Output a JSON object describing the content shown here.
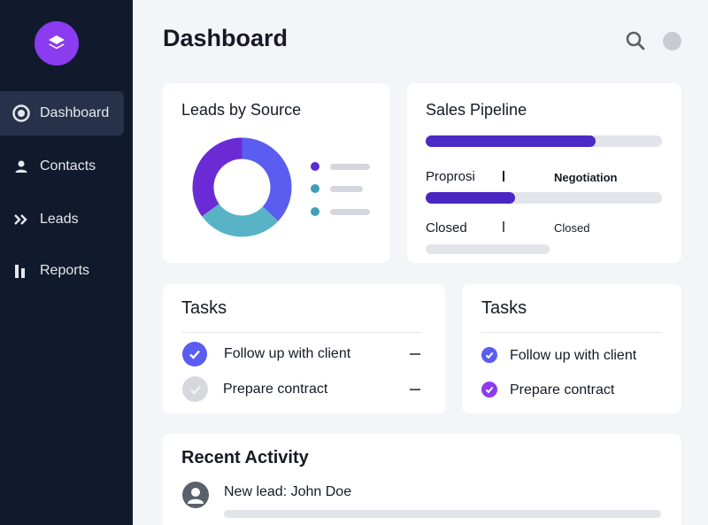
{
  "sidebar": {
    "items": [
      {
        "label": "Dashboard",
        "icon": "dashboard-icon",
        "active": true
      },
      {
        "label": "Contacts",
        "icon": "person-icon"
      },
      {
        "label": "Leads",
        "icon": "chevrons-right-icon"
      },
      {
        "label": "Reports",
        "icon": "bar-chart-icon"
      }
    ]
  },
  "header": {
    "title": "Dashboard"
  },
  "leads_card": {
    "title": "Leads by Source",
    "segments": [
      {
        "color": "#5b5cf0",
        "fraction": 0.37
      },
      {
        "color": "#58b3c7",
        "fraction": 0.28
      },
      {
        "color": "#6a2bd4",
        "fraction": 0.35
      }
    ],
    "legend_colors": [
      "#5a2cd0",
      "#3f9fb4",
      "#3f9fb4"
    ]
  },
  "pipeline_card": {
    "title": "Sales Pipeline",
    "bar1_progress": 0.72,
    "label_left_1": "Proprosi",
    "label_right_1": "Negotiation",
    "bar2_progress": 0.38,
    "label_left_2": "Closed",
    "label_right_2": "Closed",
    "bar3_progress": 0
  },
  "tasks_left": {
    "title": "Tasks",
    "items": [
      {
        "text": "Follow up with client",
        "done": true
      },
      {
        "text": "Prepare contract",
        "done": false
      }
    ]
  },
  "tasks_right": {
    "title": "Tasks",
    "items": [
      {
        "text": "Follow up with client",
        "done": true
      },
      {
        "text": "Prepare contract",
        "done": true
      }
    ]
  },
  "activity": {
    "title": "Recent Activity",
    "items": [
      {
        "text": "New lead: John Doe"
      }
    ]
  },
  "colors": {
    "sidebar_bg": "#111a2c",
    "accent": "#5b5cf0",
    "accent_dark": "#4a26c2",
    "logo": "#8b3bf0"
  }
}
